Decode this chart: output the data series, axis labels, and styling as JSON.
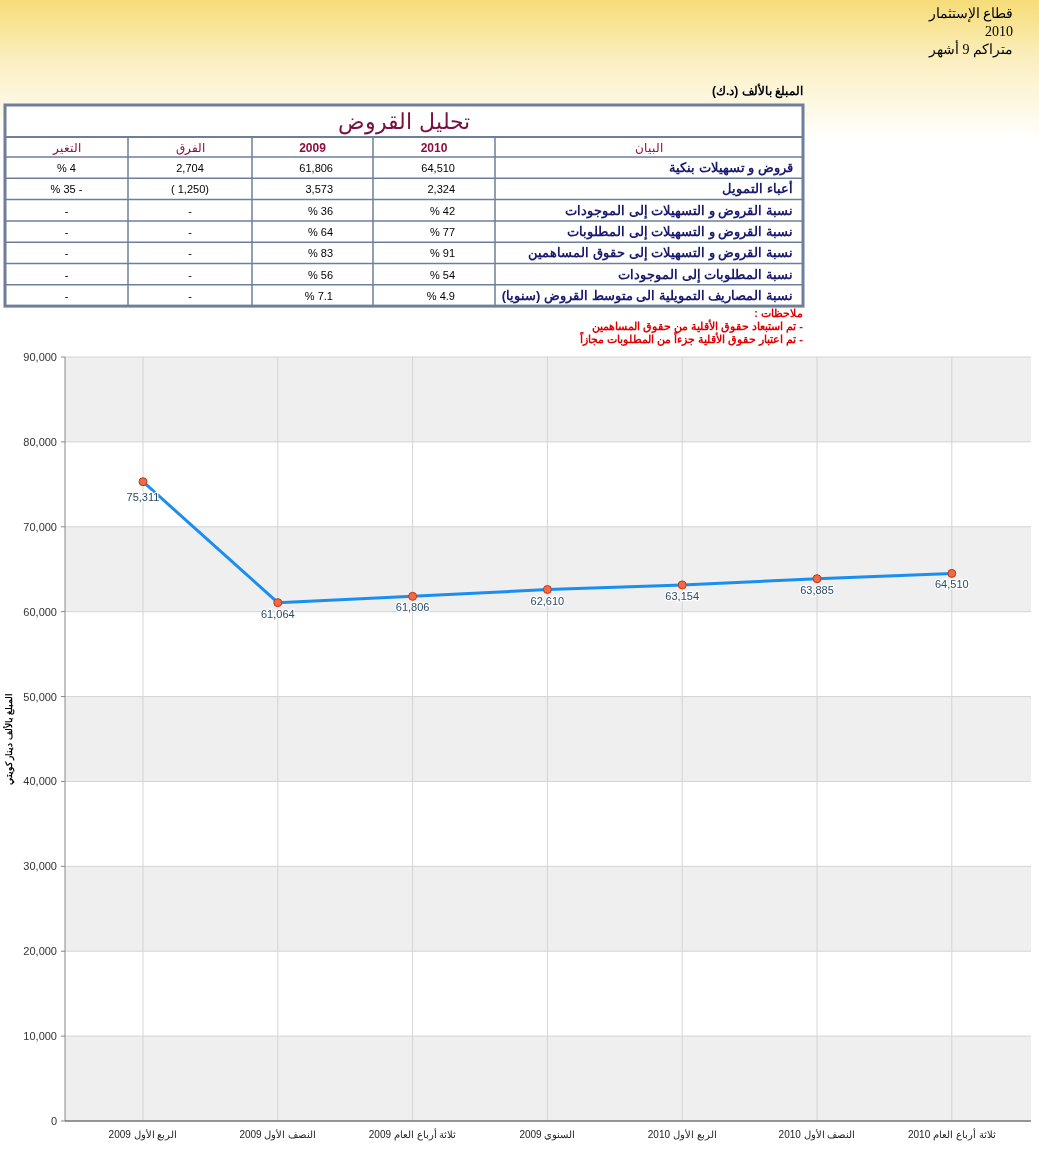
{
  "chart_data": [
    {
      "type": "other",
      "annotations": [
        "قطاع الإستثمار",
        "2010",
        "متراكم 9 أشهر",
        "المبلغ بالألف (د.ك)"
      ]
    },
    {
      "type": "other",
      "title": "تحليل القروض",
      "categories": [
        "البيان",
        "2010",
        "2009",
        "الفرق",
        "التغير"
      ],
      "y_categories": [
        "قروض و تسهيلات بنكية",
        "أعباء التمويل",
        "نسبة القروض و التسهيلات إلى الموجودات",
        "نسبة القروض و التسهيلات إلى المطلوبات",
        "نسبة القروض و التسهيلات إلى حقوق المساهمين",
        "نسبة المطلوبات إلى الموجودات",
        "نسبة المصاريف التمويلية الى متوسط القروض (سنويا)"
      ],
      "cell_labels": [
        [
          "64,510",
          "61,806",
          "2,704",
          "% 4"
        ],
        [
          "2,324",
          "3,573",
          "( 1,250)",
          "% 35 -"
        ],
        [
          "% 42",
          "% 36",
          "-",
          "-"
        ],
        [
          "% 77",
          "% 64",
          "-",
          "-"
        ],
        [
          "% 91",
          "% 83",
          "-",
          "-"
        ],
        [
          "% 54",
          "% 56",
          "-",
          "-"
        ],
        [
          "% 4.9",
          "% 7.1",
          "-",
          "-"
        ]
      ],
      "annotations": [
        "ملاحظات :",
        "- تم استبعاد حقوق الأقلية من حقوق المساهمين",
        "- تم اعتبار حقوق الأقلية جزءاً من المطلوبات مجازاً"
      ]
    },
    {
      "type": "line",
      "ylabel": "المبلغ بالألف دينار كويتي",
      "categories": [
        "الربع الأول 2009",
        "النصف الأول 2009",
        "ثلاثة أرباع العام 2009",
        "السنوي 2009",
        "الربع الأول 2010",
        "النصف الأول 2010",
        "ثلاثة أرباع العام 2010"
      ],
      "series": [
        {
          "color": "#1a8fef",
          "values": [
            75311,
            61064,
            61806,
            62610,
            63154,
            63885,
            64510
          ],
          "value_labels": [
            "75,311",
            "61,064",
            "61,806",
            "62,610",
            "63,154",
            "63,885",
            "64,510"
          ]
        }
      ],
      "marker": "circle",
      "line_style": "solid",
      "grid": true,
      "ylim": [
        0,
        90000
      ],
      "yticks": [
        0,
        {
          "value": 10000,
          "label": "10,000"
        },
        {
          "value": 20000,
          "label": "20,000"
        },
        {
          "value": 30000,
          "label": "30,000"
        },
        {
          "value": 40000,
          "label": "40,000"
        },
        {
          "value": 50000,
          "label": "50,000"
        },
        {
          "value": 60000,
          "label": "60,000"
        },
        {
          "value": 70000,
          "label": "70,000"
        },
        {
          "value": 80000,
          "label": "80,000"
        },
        {
          "value": 90000,
          "label": "90,000"
        }
      ]
    }
  ]
}
